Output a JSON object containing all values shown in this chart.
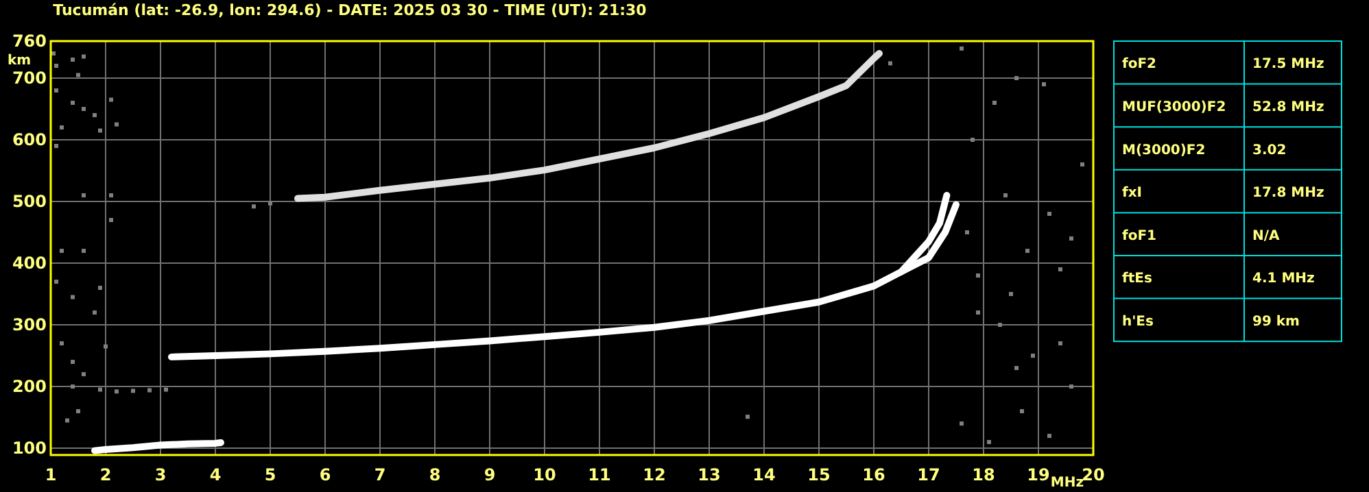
{
  "chart_data": {
    "type": "line",
    "title": "Tucumán (lat: -26.9, lon: 294.6) - DATE: 2025 03 30 - TIME (UT): 21:30",
    "xlabel": "MHz",
    "ylabel": "km",
    "xlim": [
      1,
      20
    ],
    "xticks": [
      1,
      2,
      3,
      4,
      5,
      6,
      7,
      8,
      9,
      10,
      11,
      12,
      13,
      14,
      15,
      16,
      17,
      18,
      19,
      20
    ],
    "ylim": [
      89,
      760
    ],
    "yticks": [
      100,
      200,
      300,
      400,
      500,
      600,
      700,
      760
    ],
    "grid": true,
    "line_style": "solid",
    "series": [
      {
        "type": "scatter",
        "marker": "square",
        "color": "#808080",
        "x": [
          1.05,
          1.1,
          1.4,
          1.6,
          1.5,
          1.1,
          1.4,
          1.6,
          1.8,
          2.1,
          2.2,
          1.9,
          1.2,
          1.1,
          2.1,
          1.6,
          1.2,
          1.6,
          1.1,
          1.4,
          1.8,
          1.9,
          1.2,
          2,
          1.4,
          1.6,
          1.4,
          1.9,
          2.2,
          2.5,
          2.8,
          3.1,
          1.3,
          1.5,
          2.1,
          5,
          4.7,
          16.3,
          17.6,
          17.8,
          18.2,
          18.6,
          19.1,
          17.7,
          17.9,
          18.5,
          18.8,
          19.2,
          19.6,
          18.3,
          18.9,
          19.4,
          17.6,
          18.1,
          18.7,
          19.2,
          19.6,
          18.4,
          19.8,
          13.7,
          17.9,
          18.6,
          19.4
        ],
        "values": [
          740,
          720,
          730,
          735,
          705,
          680,
          660,
          650,
          640,
          665,
          625,
          615,
          620,
          590,
          510,
          510,
          420,
          420,
          370,
          345,
          320,
          360,
          270,
          265,
          240,
          220,
          200,
          195,
          192,
          193,
          194,
          195,
          145,
          160,
          470,
          497,
          492,
          724,
          748,
          600,
          660,
          700,
          690,
          450,
          380,
          350,
          420,
          480,
          440,
          300,
          250,
          270,
          140,
          110,
          160,
          120,
          200,
          510,
          560,
          151,
          320,
          230,
          390
        ]
      },
      {
        "color": "#ffffff",
        "x": [
          1.8,
          2,
          2.5,
          3,
          3.5,
          4,
          4.1
        ],
        "values": [
          96,
          98,
          101,
          105,
          107,
          108,
          109
        ]
      },
      {
        "color": "#ffffff",
        "x": [
          3.2,
          4,
          5,
          6,
          7,
          8,
          9,
          10,
          11,
          12,
          13,
          14,
          15,
          16,
          16.5,
          17,
          17.2,
          17.33
        ],
        "values": [
          248,
          250,
          253,
          257,
          262,
          268,
          274,
          281,
          288,
          296,
          307,
          322,
          337,
          363,
          386,
          435,
          465,
          510
        ]
      },
      {
        "color": "#ffffff",
        "x": [
          16.5,
          17,
          17.3,
          17.5
        ],
        "values": [
          386,
          409,
          450,
          495
        ]
      },
      {
        "color": "#e0e0e0",
        "x": [
          5.5,
          6,
          7,
          8,
          9,
          10,
          12,
          13,
          14,
          15,
          15.5,
          16,
          16.1
        ],
        "values": [
          505,
          507,
          518,
          528,
          538,
          551,
          587,
          610,
          636,
          670,
          688,
          732,
          740
        ]
      }
    ],
    "annotations": [
      "foF2",
      "17.5 MHz",
      "MUF(3000)F2",
      "52.8 MHz",
      "M(3000)F2",
      "3.02",
      "fxI",
      "17.8 MHz",
      "foF1",
      "N/A",
      "ftEs",
      "4.1 MHz",
      "h'Es",
      "99 km"
    ]
  }
}
